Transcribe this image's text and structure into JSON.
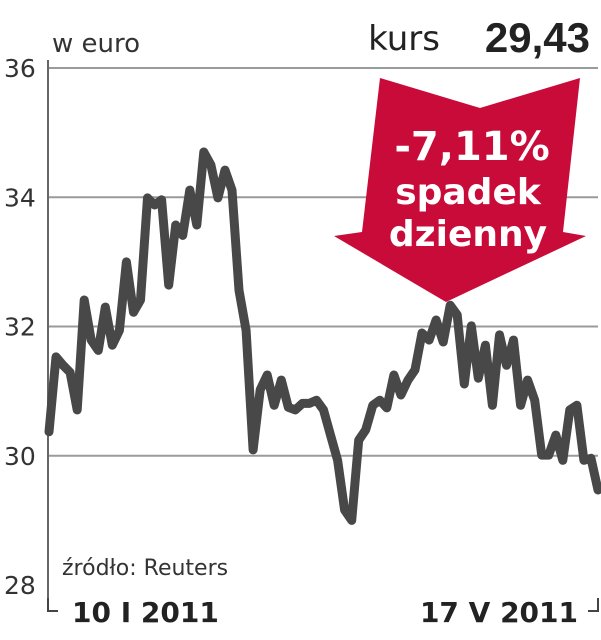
{
  "chart_data": {
    "type": "line",
    "unit_label": "w euro",
    "price_label": "kurs",
    "price_value": "29,43",
    "change_value": "-7,11%",
    "change_text_1": "spadek",
    "change_text_2": "dzienny",
    "source": "źródło: Reuters",
    "x_labels": [
      "10 I 2011",
      "17 V 2011"
    ],
    "y_ticks": [
      28,
      30,
      32,
      34,
      36
    ],
    "y_tick_labels": [
      "28",
      "30",
      "32",
      "34",
      "36"
    ],
    "ylim": [
      28,
      36
    ],
    "grid": true,
    "colors": {
      "line": "#484848",
      "arrow": "#c90b3a",
      "grid": "#9a9a9a"
    },
    "values": [
      30.37,
      31.53,
      31.4,
      31.29,
      30.71,
      32.41,
      31.79,
      31.63,
      32.3,
      31.71,
      31.94,
      33.0,
      32.22,
      32.41,
      33.99,
      33.88,
      33.96,
      32.64,
      33.57,
      33.41,
      34.11,
      33.57,
      34.7,
      34.5,
      33.99,
      34.42,
      34.11,
      32.56,
      31.94,
      30.09,
      31.02,
      31.25,
      30.78,
      31.17,
      30.75,
      30.71,
      30.81,
      30.81,
      30.86,
      30.71,
      30.32,
      29.93,
      29.16,
      29.0,
      30.24,
      30.4,
      30.78,
      30.86,
      30.74,
      31.25,
      30.94,
      31.17,
      31.33,
      31.9,
      31.79,
      32.1,
      31.76,
      32.33,
      32.18,
      31.11,
      32.01,
      31.2,
      31.71,
      30.78,
      31.87,
      31.4,
      31.79,
      30.78,
      31.17,
      30.86,
      30.01,
      30.01,
      30.32,
      29.93,
      30.71,
      30.78,
      29.93,
      29.96,
      29.47
    ]
  }
}
